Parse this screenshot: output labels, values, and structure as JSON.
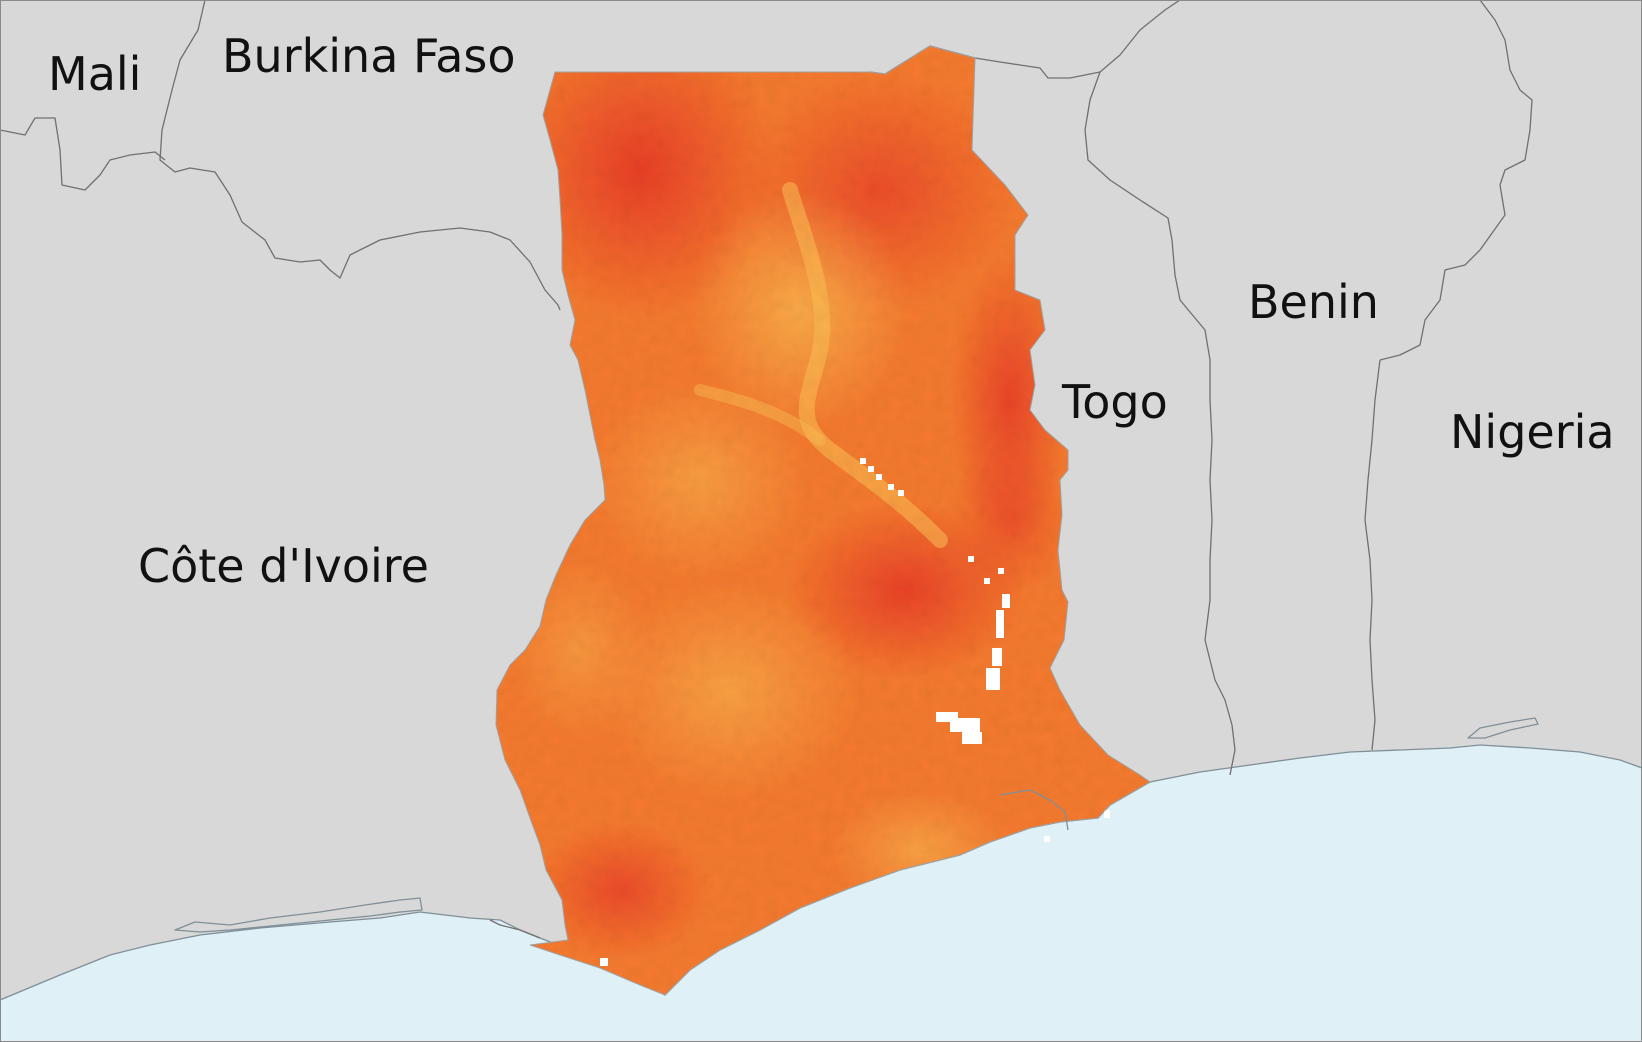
{
  "labels": {
    "mali": "Mali",
    "burkina_faso": "Burkina Faso",
    "cote_divoire": "Côte d'Ivoire",
    "togo": "Togo",
    "benin": "Benin",
    "nigeria": "Nigeria"
  },
  "colors": {
    "land": "#d8d8d8",
    "sea": "#dff0f7",
    "border": "#707070",
    "heat_low": "#f9b24a",
    "heat_mid": "#f47a2e",
    "heat_high": "#e63527",
    "nodata": "#ffffff"
  },
  "legend_visible": false
}
